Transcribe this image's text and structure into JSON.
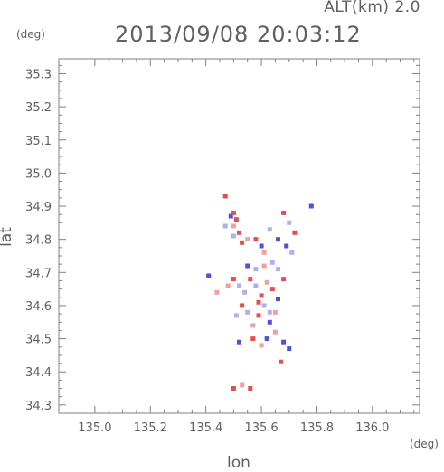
{
  "header": {
    "altitude": "ALT(km) 2.0",
    "datetime": "2013/09/08 20:03:12"
  },
  "axis_units": {
    "y": "(deg)",
    "x": "(deg)"
  },
  "chart_data": {
    "type": "scatter",
    "xlabel": "lon",
    "ylabel": "lat",
    "xlim": [
      134.87,
      136.17
    ],
    "ylim": [
      34.275,
      35.345
    ],
    "xticks": [
      "135.0",
      "135.2",
      "135.4",
      "135.6",
      "135.8",
      "136.0"
    ],
    "xtick_values": [
      135.0,
      135.2,
      135.4,
      135.6,
      135.8,
      136.0
    ],
    "yticks": [
      "35.3",
      "35.2",
      "35.1",
      "35.0",
      "34.9",
      "34.8",
      "34.7",
      "34.6",
      "34.5",
      "34.4",
      "34.3"
    ],
    "ytick_values": [
      35.3,
      35.2,
      35.1,
      35.0,
      34.9,
      34.8,
      34.7,
      34.6,
      34.5,
      34.4,
      34.3
    ],
    "grid": false,
    "colors": {
      "positive": "#e05050",
      "negative": "#5050e0",
      "light_pos": "#f0a0a0",
      "light_neg": "#b0b0f0",
      "axis": "#808080"
    },
    "points": [
      [
        135.49,
        34.87,
        "negative"
      ],
      [
        135.5,
        34.88,
        "positive"
      ],
      [
        135.51,
        34.86,
        "positive"
      ],
      [
        135.5,
        34.84,
        "light_pos"
      ],
      [
        135.52,
        34.82,
        "positive"
      ],
      [
        135.5,
        34.81,
        "light_neg"
      ],
      [
        135.53,
        34.79,
        "positive"
      ],
      [
        135.47,
        34.84,
        "light_neg"
      ],
      [
        135.47,
        34.93,
        "positive"
      ],
      [
        135.55,
        34.8,
        "light_pos"
      ],
      [
        135.58,
        34.8,
        "positive"
      ],
      [
        135.6,
        34.78,
        "negative"
      ],
      [
        135.61,
        34.76,
        "light_pos"
      ],
      [
        135.63,
        34.83,
        "light_neg"
      ],
      [
        135.66,
        34.8,
        "negative"
      ],
      [
        135.68,
        34.88,
        "positive"
      ],
      [
        135.7,
        34.85,
        "light_neg"
      ],
      [
        135.72,
        34.82,
        "positive"
      ],
      [
        135.69,
        34.78,
        "negative"
      ],
      [
        135.71,
        34.76,
        "light_neg"
      ],
      [
        135.78,
        34.9,
        "negative"
      ],
      [
        135.41,
        34.69,
        "negative"
      ],
      [
        135.44,
        34.64,
        "light_pos"
      ],
      [
        135.48,
        34.66,
        "light_pos"
      ],
      [
        135.5,
        34.68,
        "positive"
      ],
      [
        135.52,
        34.66,
        "light_neg"
      ],
      [
        135.54,
        34.64,
        "light_neg"
      ],
      [
        135.56,
        34.68,
        "positive"
      ],
      [
        135.58,
        34.66,
        "light_neg"
      ],
      [
        135.6,
        34.63,
        "positive"
      ],
      [
        135.62,
        34.67,
        "light_pos"
      ],
      [
        135.64,
        34.65,
        "positive"
      ],
      [
        135.66,
        34.62,
        "negative"
      ],
      [
        135.68,
        34.68,
        "positive"
      ],
      [
        135.65,
        34.58,
        "light_pos"
      ],
      [
        135.63,
        34.55,
        "negative"
      ],
      [
        135.61,
        34.6,
        "light_neg"
      ],
      [
        135.59,
        34.57,
        "positive"
      ],
      [
        135.57,
        34.54,
        "light_pos"
      ],
      [
        135.55,
        34.58,
        "light_neg"
      ],
      [
        135.53,
        34.6,
        "positive"
      ],
      [
        135.51,
        34.57,
        "light_neg"
      ],
      [
        135.57,
        34.5,
        "positive"
      ],
      [
        135.6,
        34.48,
        "light_pos"
      ],
      [
        135.62,
        34.5,
        "negative"
      ],
      [
        135.65,
        34.52,
        "light_pos"
      ],
      [
        135.68,
        34.49,
        "negative"
      ],
      [
        135.7,
        34.47,
        "negative"
      ],
      [
        135.52,
        34.49,
        "negative"
      ],
      [
        135.67,
        34.43,
        "positive"
      ],
      [
        135.5,
        34.35,
        "positive"
      ],
      [
        135.53,
        34.36,
        "light_pos"
      ],
      [
        135.56,
        34.35,
        "positive"
      ],
      [
        135.64,
        34.73,
        "light_neg"
      ],
      [
        135.61,
        34.72,
        "light_pos"
      ],
      [
        135.66,
        34.71,
        "light_neg"
      ],
      [
        135.58,
        34.71,
        "light_neg"
      ],
      [
        135.55,
        34.72,
        "negative"
      ],
      [
        135.63,
        34.58,
        "light_neg"
      ],
      [
        135.59,
        34.61,
        "positive"
      ]
    ]
  }
}
